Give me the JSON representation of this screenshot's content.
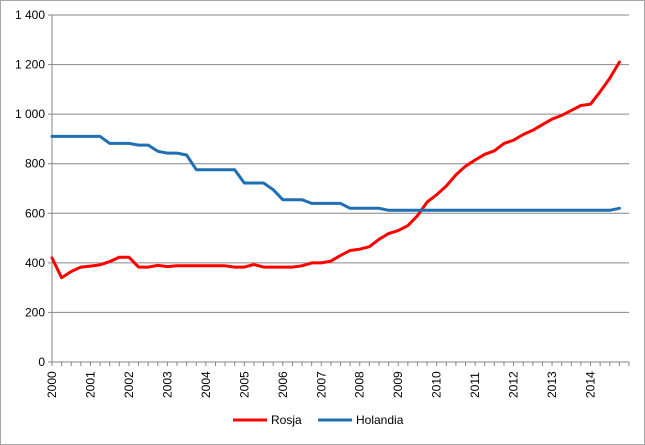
{
  "chart_data": {
    "type": "line",
    "title": "",
    "xlabel": "",
    "ylabel": "",
    "ylim": [
      0,
      1400
    ],
    "y_ticks": [
      "0",
      "200",
      "400",
      "600",
      "800",
      "1 000",
      "1 200",
      "1 400"
    ],
    "x_ticks": [
      "2000",
      "2001",
      "2002",
      "2003",
      "2004",
      "2005",
      "2006",
      "2007",
      "2008",
      "2009",
      "2010",
      "2011",
      "2012",
      "2013",
      "2014"
    ],
    "grid": "horizontal",
    "legend_position": "bottom",
    "series": [
      {
        "name": "Rosja",
        "color": "#ff0000",
        "x": [
          2000.0,
          2000.25,
          2000.5,
          2000.75,
          2001.0,
          2001.25,
          2001.5,
          2001.75,
          2002.0,
          2002.25,
          2002.5,
          2002.75,
          2003.0,
          2003.25,
          2003.5,
          2003.75,
          2004.0,
          2004.25,
          2004.5,
          2004.75,
          2005.0,
          2005.25,
          2005.5,
          2005.75,
          2006.0,
          2006.25,
          2006.5,
          2006.75,
          2007.0,
          2007.25,
          2007.5,
          2007.75,
          2008.0,
          2008.25,
          2008.5,
          2008.75,
          2009.0,
          2009.25,
          2009.5,
          2009.75,
          2010.0,
          2010.25,
          2010.5,
          2010.75,
          2011.0,
          2011.25,
          2011.5,
          2011.75,
          2012.0,
          2012.25,
          2012.5,
          2012.75,
          2013.0,
          2013.25,
          2013.5,
          2013.75,
          2014.0,
          2014.25,
          2014.5,
          2014.75
        ],
        "values": [
          420,
          340,
          365,
          383,
          387,
          392,
          405,
          423,
          423,
          383,
          383,
          390,
          385,
          388,
          388,
          388,
          388,
          388,
          388,
          383,
          383,
          393,
          383,
          383,
          383,
          383,
          388,
          400,
          400,
          407,
          430,
          450,
          455,
          465,
          495,
          518,
          530,
          550,
          590,
          645,
          675,
          710,
          755,
          790,
          815,
          838,
          852,
          882,
          895,
          918,
          935,
          958,
          980,
          995,
          1015,
          1035,
          1040,
          1090,
          1145,
          1210
        ]
      },
      {
        "name": "Holandia",
        "color": "#1f6fb4",
        "x": [
          2000.0,
          2000.25,
          2000.5,
          2000.75,
          2001.0,
          2001.25,
          2001.5,
          2001.75,
          2002.0,
          2002.25,
          2002.5,
          2002.75,
          2003.0,
          2003.25,
          2003.5,
          2003.75,
          2004.0,
          2004.25,
          2004.5,
          2004.75,
          2005.0,
          2005.25,
          2005.5,
          2005.75,
          2006.0,
          2006.25,
          2006.5,
          2006.75,
          2007.0,
          2007.25,
          2007.5,
          2007.75,
          2008.0,
          2008.25,
          2008.5,
          2008.75,
          2009.0,
          2009.25,
          2009.5,
          2009.75,
          2010.0,
          2010.25,
          2010.5,
          2010.75,
          2011.0,
          2011.25,
          2011.5,
          2011.75,
          2012.0,
          2012.25,
          2012.5,
          2012.75,
          2013.0,
          2013.25,
          2013.5,
          2013.75,
          2014.0,
          2014.25,
          2014.5,
          2014.75
        ],
        "values": [
          910,
          910,
          910,
          910,
          910,
          910,
          882,
          882,
          882,
          875,
          875,
          850,
          843,
          843,
          835,
          776,
          776,
          776,
          776,
          776,
          722,
          722,
          722,
          695,
          655,
          655,
          655,
          640,
          640,
          640,
          640,
          620,
          620,
          620,
          620,
          612,
          612,
          612,
          612,
          612,
          612,
          612,
          612,
          612,
          612,
          612,
          612,
          612,
          612,
          612,
          612,
          612,
          612,
          612,
          612,
          612,
          612,
          612,
          612,
          620
        ]
      }
    ]
  }
}
